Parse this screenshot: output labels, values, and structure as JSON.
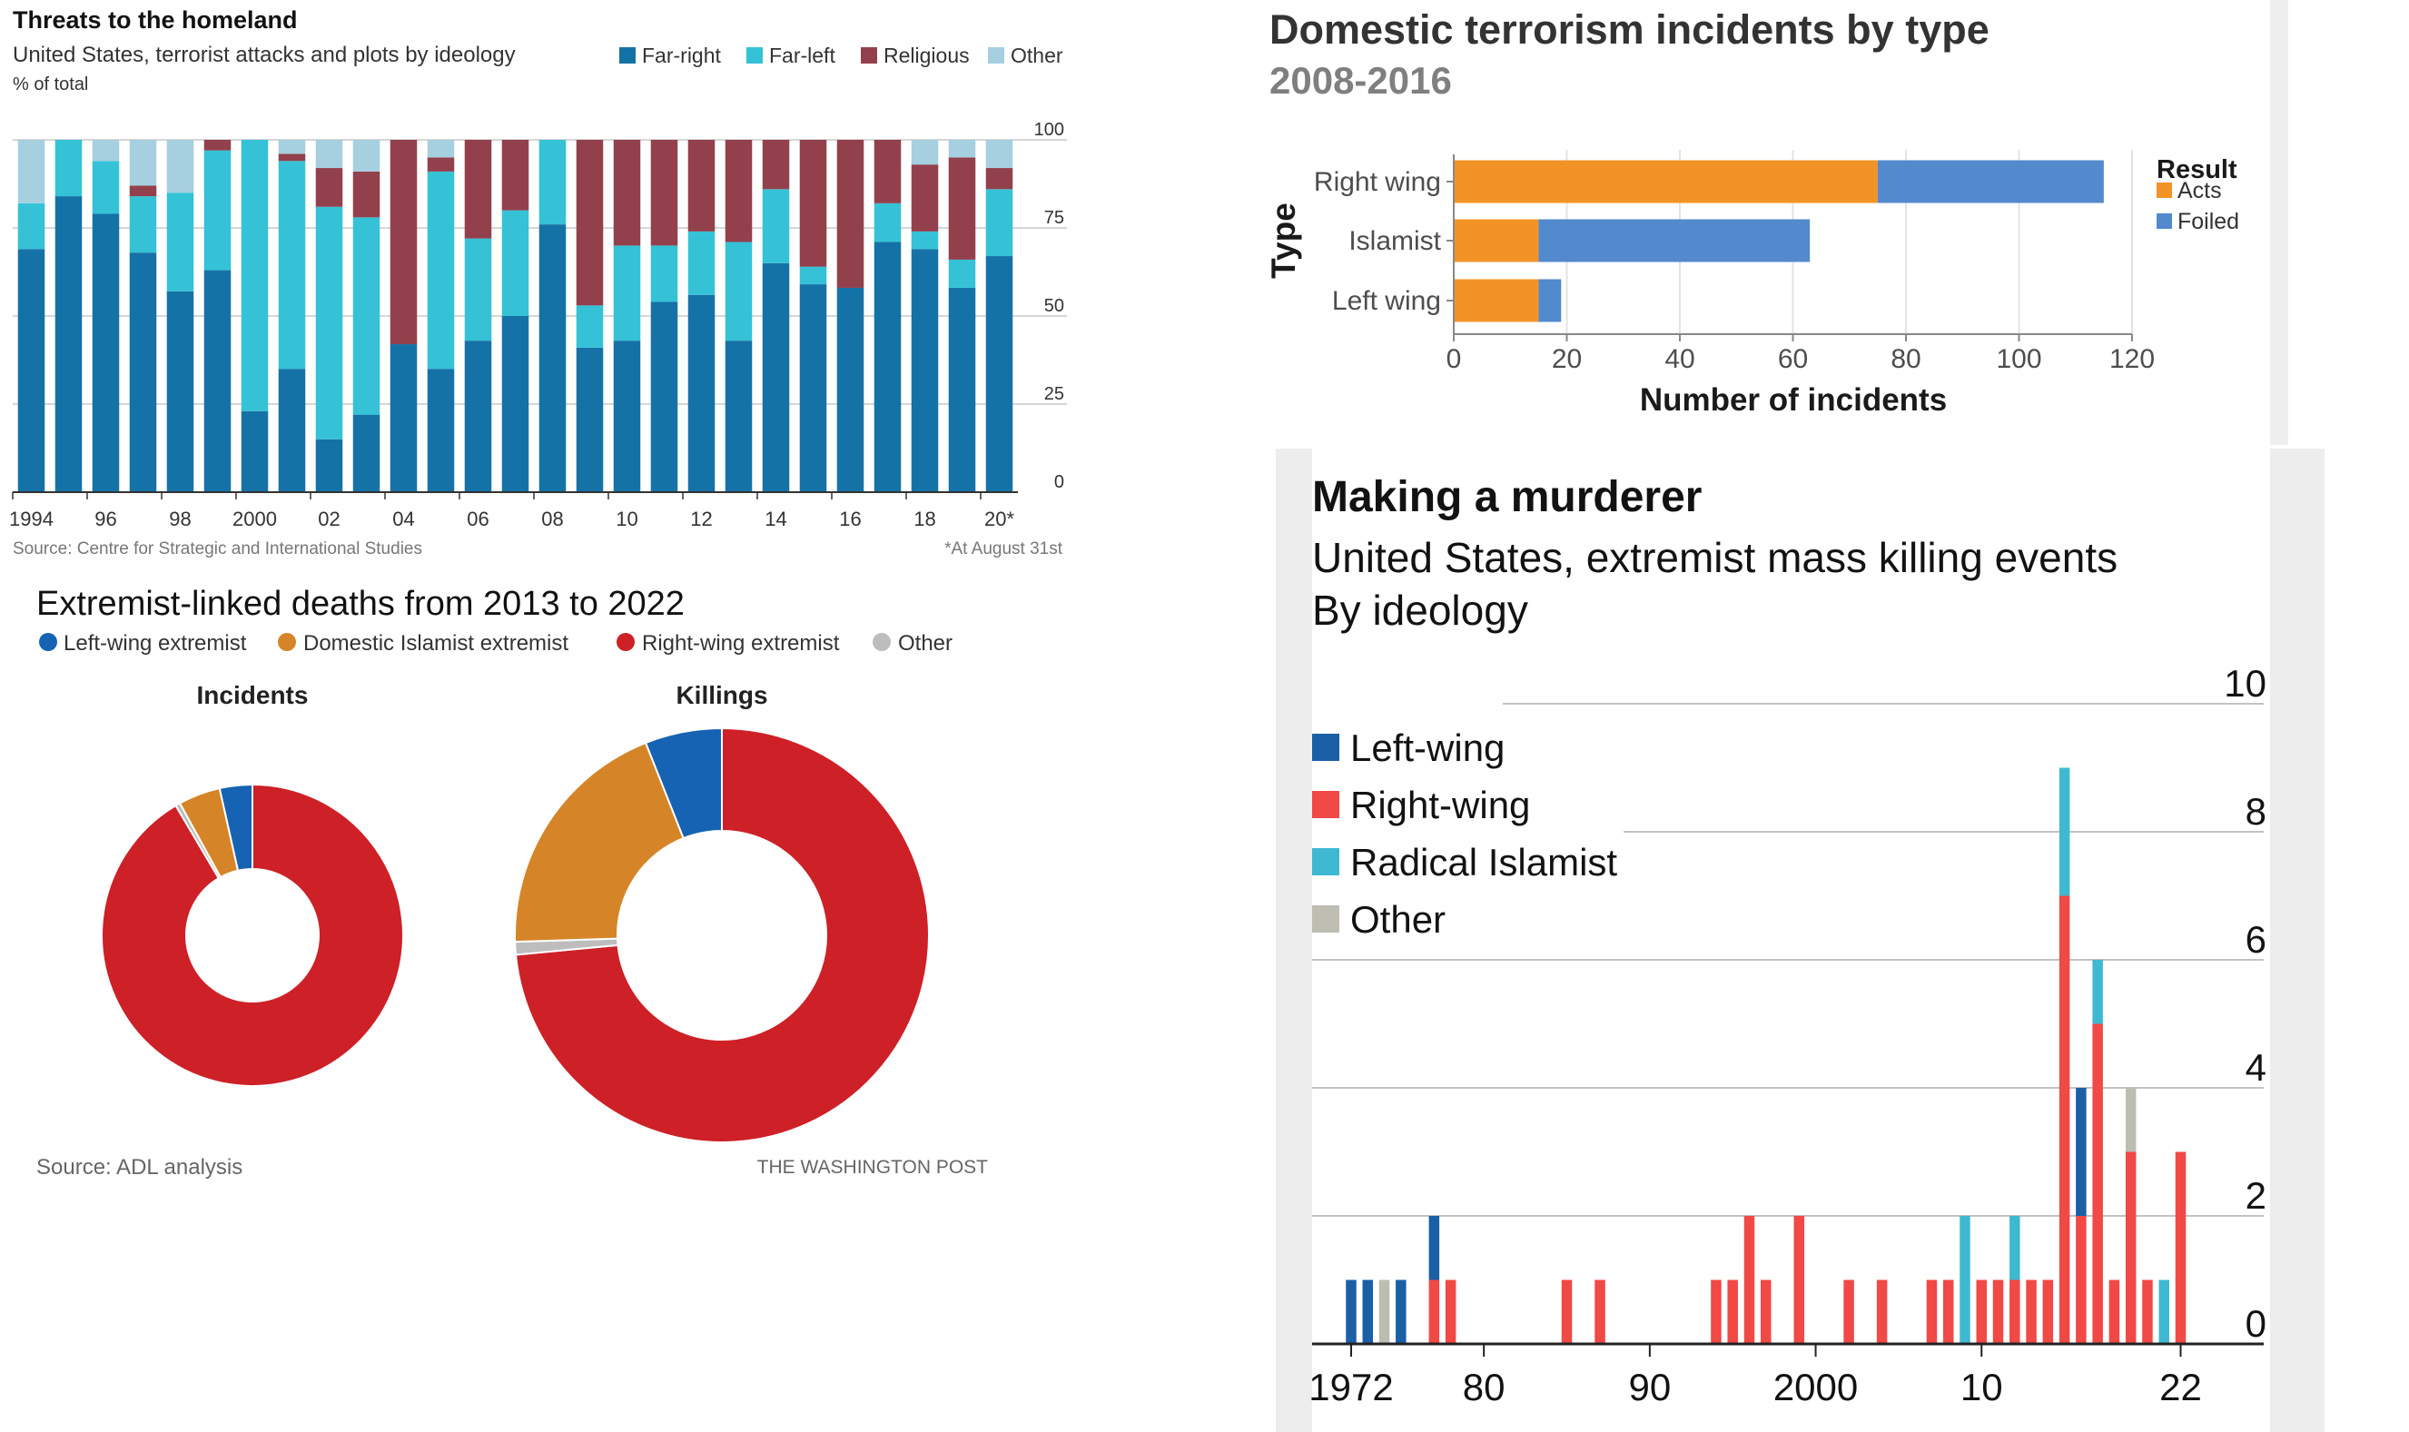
{
  "colors": {
    "far_right": "#1572A6",
    "far_left": "#35C2D6",
    "religious": "#93404D",
    "other_econ": "#A6CFDF",
    "acts": "#F39325",
    "foiled": "#5389CD",
    "wapo_left": "#1763B3",
    "wapo_islamist": "#D58528",
    "wapo_right": "#CE2027",
    "wapo_other": "#BDBDBD",
    "mk_left": "#1B5FA5",
    "mk_right": "#F04946",
    "mk_islamist": "#3FB9D2",
    "mk_other": "#BDBDB2"
  },
  "chart_data": [
    {
      "id": "threats",
      "type": "bar",
      "stacked": true,
      "title": "Threats to the homeland",
      "subtitle": "United States, terrorist attacks and plots by ideology",
      "ylabel": "% of total",
      "ylim": [
        0,
        100
      ],
      "yticks": [
        "0",
        "25",
        "50",
        "75",
        "100"
      ],
      "xtick_labels": [
        "1994",
        "96",
        "98",
        "2000",
        "02",
        "04",
        "06",
        "08",
        "10",
        "12",
        "14",
        "16",
        "18",
        "20*"
      ],
      "categories": [
        "1994",
        "1995",
        "1996",
        "1997",
        "1998",
        "1999",
        "2000",
        "2001",
        "2002",
        "2003",
        "2004",
        "2005",
        "2006",
        "2007",
        "2008",
        "2009",
        "2010",
        "2011",
        "2012",
        "2013",
        "2014",
        "2015",
        "2016",
        "2017",
        "2018",
        "2019",
        "2020*"
      ],
      "series": [
        {
          "name": "Far-right",
          "values": [
            69,
            84,
            79,
            68,
            57,
            63,
            23,
            35,
            15,
            22,
            42,
            35,
            43,
            50,
            76,
            41,
            43,
            54,
            56,
            43,
            65,
            59,
            58,
            71,
            69,
            58,
            67
          ]
        },
        {
          "name": "Far-left",
          "values": [
            13,
            16,
            15,
            16,
            28,
            34,
            77,
            59,
            66,
            56,
            0,
            56,
            29,
            30,
            24,
            12,
            27,
            16,
            18,
            28,
            21,
            5,
            0,
            11,
            5,
            8,
            19
          ]
        },
        {
          "name": "Religious",
          "values": [
            0,
            0,
            0,
            3,
            0,
            3,
            0,
            2,
            11,
            13,
            58,
            4,
            28,
            20,
            0,
            47,
            30,
            30,
            26,
            29,
            14,
            36,
            42,
            18,
            19,
            29,
            6
          ]
        },
        {
          "name": "Other",
          "values": [
            18,
            0,
            6,
            13,
            15,
            0,
            0,
            4,
            8,
            9,
            0,
            5,
            0,
            0,
            0,
            0,
            0,
            0,
            0,
            0,
            0,
            0,
            0,
            0,
            7,
            5,
            8
          ]
        }
      ],
      "source": "Source: Centre for Strategic and International Studies",
      "note": "*At August 31st"
    },
    {
      "id": "domestic",
      "type": "bar",
      "orientation": "horizontal",
      "stacked": true,
      "title": "Domestic terrorism incidents by type",
      "subtitle": "2008-2016",
      "xlabel": "Number of incidents",
      "ylabel": "Type",
      "xlim": [
        0,
        120
      ],
      "xticks": [
        "0",
        "20",
        "40",
        "60",
        "80",
        "100",
        "120"
      ],
      "categories": [
        "Right wing",
        "Islamist",
        "Left wing"
      ],
      "legend_title": "Result",
      "series": [
        {
          "name": "Acts",
          "values": [
            75,
            15,
            15
          ]
        },
        {
          "name": "Foiled",
          "values": [
            40,
            48,
            4
          ]
        }
      ]
    },
    {
      "id": "wapo",
      "type": "pie",
      "donut": true,
      "title": "Extremist-linked deaths from 2013 to 2022",
      "legend": [
        "Left-wing extremist",
        "Domestic Islamist extremist",
        "Right-wing extremist",
        "Other"
      ],
      "panels": [
        {
          "label": "Incidents",
          "values": [
            3.5,
            4.5,
            91.5,
            0.5
          ]
        },
        {
          "label": "Killings",
          "values": [
            6,
            19.5,
            73.5,
            1
          ]
        }
      ],
      "source": "Source: ADL analysis",
      "credit": "THE WASHINGTON POST"
    },
    {
      "id": "murderer",
      "type": "bar",
      "stacked": true,
      "title": "Making a murderer",
      "subtitle": "United States, extremist mass killing events",
      "subtitle2": "By ideology",
      "ylim": [
        0,
        10
      ],
      "yticks": [
        "0",
        "2",
        "4",
        "6",
        "8",
        "10"
      ],
      "xtick_labels": [
        "1972",
        "80",
        "90",
        "2000",
        "10",
        "22"
      ],
      "legend": [
        "Left-wing",
        "Right-wing",
        "Radical Islamist",
        "Other"
      ],
      "years": [
        1972,
        1973,
        1974,
        1975,
        1976,
        1977,
        1978,
        1979,
        1980,
        1981,
        1982,
        1983,
        1984,
        1985,
        1986,
        1987,
        1988,
        1989,
        1990,
        1991,
        1992,
        1993,
        1994,
        1995,
        1996,
        1997,
        1998,
        1999,
        2000,
        2001,
        2002,
        2003,
        2004,
        2005,
        2006,
        2007,
        2008,
        2009,
        2010,
        2011,
        2012,
        2013,
        2014,
        2015,
        2016,
        2017,
        2018,
        2019,
        2020,
        2021,
        2022
      ],
      "series": [
        {
          "name": "Left-wing",
          "values": [
            1,
            1,
            0,
            1,
            0,
            1,
            0,
            0,
            0,
            0,
            0,
            0,
            0,
            0,
            0,
            0,
            0,
            0,
            0,
            0,
            0,
            0,
            0,
            0,
            0,
            0,
            0,
            0,
            0,
            0,
            0,
            0,
            0,
            0,
            0,
            0,
            0,
            0,
            0,
            0,
            0,
            0,
            0,
            0,
            2,
            0,
            0,
            0,
            0,
            0,
            0
          ]
        },
        {
          "name": "Right-wing",
          "values": [
            0,
            0,
            0,
            0,
            0,
            1,
            1,
            0,
            0,
            0,
            0,
            0,
            0,
            1,
            0,
            1,
            0,
            0,
            0,
            0,
            0,
            0,
            1,
            1,
            2,
            1,
            0,
            2,
            0,
            0,
            1,
            0,
            1,
            0,
            0,
            1,
            1,
            0,
            1,
            1,
            1,
            1,
            1,
            7,
            2,
            5,
            1,
            3,
            1,
            0,
            3
          ]
        },
        {
          "name": "Radical Islamist",
          "values": [
            0,
            0,
            0,
            0,
            0,
            0,
            0,
            0,
            0,
            0,
            0,
            0,
            0,
            0,
            0,
            0,
            0,
            0,
            0,
            0,
            0,
            0,
            0,
            0,
            0,
            0,
            0,
            0,
            0,
            0,
            0,
            0,
            0,
            0,
            0,
            0,
            0,
            2,
            0,
            0,
            1,
            0,
            0,
            2,
            0,
            1,
            0,
            0,
            0,
            1,
            0
          ]
        },
        {
          "name": "Other",
          "values": [
            0,
            0,
            1,
            0,
            0,
            0,
            0,
            0,
            0,
            0,
            0,
            0,
            0,
            0,
            0,
            0,
            0,
            0,
            0,
            0,
            0,
            0,
            0,
            0,
            0,
            0,
            0,
            0,
            0,
            0,
            0,
            0,
            0,
            0,
            0,
            0,
            0,
            0,
            0,
            0,
            0,
            0,
            0,
            0,
            0,
            0,
            0,
            1,
            0,
            0,
            0
          ]
        }
      ]
    }
  ]
}
